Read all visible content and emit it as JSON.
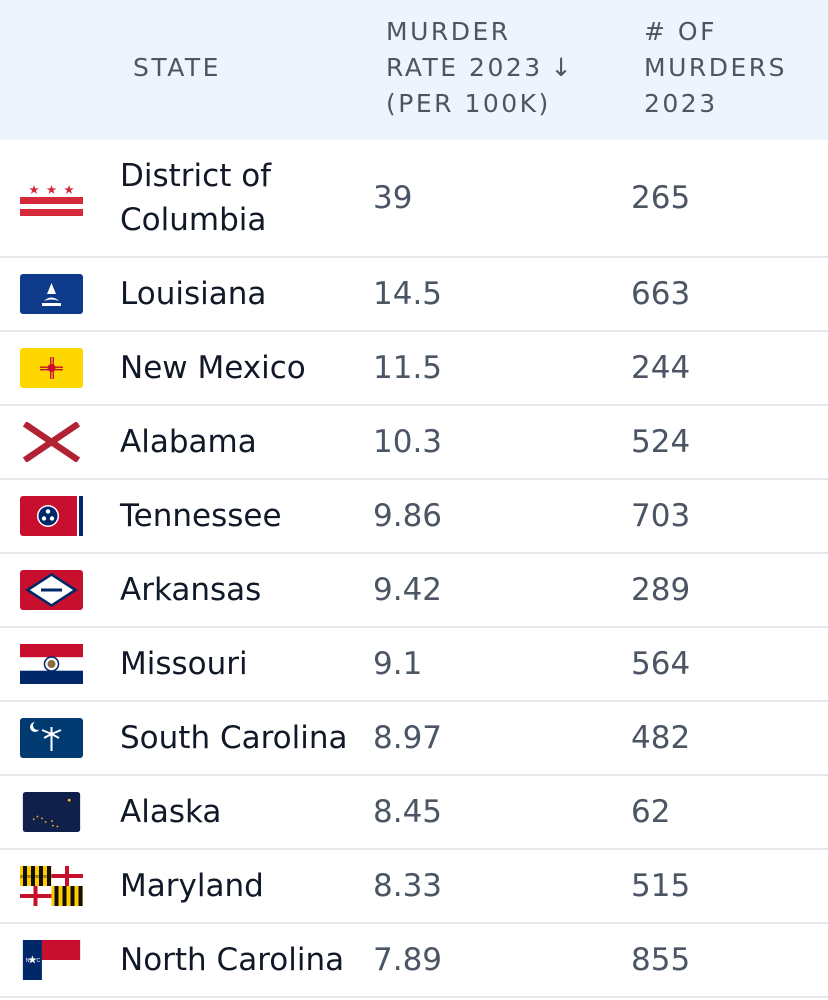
{
  "header": {
    "state": "STATE",
    "rate_line1": "MURDER",
    "rate_line2": "RATE 2023",
    "rate_line3": "(PER 100K)",
    "sort_arrow": "↓",
    "count_line1": "# OF",
    "count_line2": "MURDERS",
    "count_line3": "2023"
  },
  "rows": [
    {
      "name_line1": "District of",
      "name_line2": "Columbia",
      "rate": "39",
      "count": "265",
      "flag_icon": "dc-flag-icon"
    },
    {
      "name": "Louisiana",
      "rate": "14.5",
      "count": "663",
      "flag_icon": "louisiana-flag-icon"
    },
    {
      "name": "New Mexico",
      "rate": "11.5",
      "count": "244",
      "flag_icon": "new-mexico-flag-icon"
    },
    {
      "name": "Alabama",
      "rate": "10.3",
      "count": "524",
      "flag_icon": "alabama-flag-icon"
    },
    {
      "name": "Tennessee",
      "rate": "9.86",
      "count": "703",
      "flag_icon": "tennessee-flag-icon"
    },
    {
      "name": "Arkansas",
      "rate": "9.42",
      "count": "289",
      "flag_icon": "arkansas-flag-icon"
    },
    {
      "name": "Missouri",
      "rate": "9.1",
      "count": "564",
      "flag_icon": "missouri-flag-icon"
    },
    {
      "name": "South Carolina",
      "rate": "8.97",
      "count": "482",
      "flag_icon": "south-carolina-flag-icon"
    },
    {
      "name": "Alaska",
      "rate": "8.45",
      "count": "62",
      "flag_icon": "alaska-flag-icon"
    },
    {
      "name": "Maryland",
      "rate": "8.33",
      "count": "515",
      "flag_icon": "maryland-flag-icon"
    },
    {
      "name": "North Carolina",
      "rate": "7.89",
      "count": "855",
      "flag_icon": "north-carolina-flag-icon"
    }
  ],
  "colors": {
    "header_bg": "#eef4fb",
    "header_text": "#4b5563",
    "row_divider": "#e5e7eb"
  }
}
